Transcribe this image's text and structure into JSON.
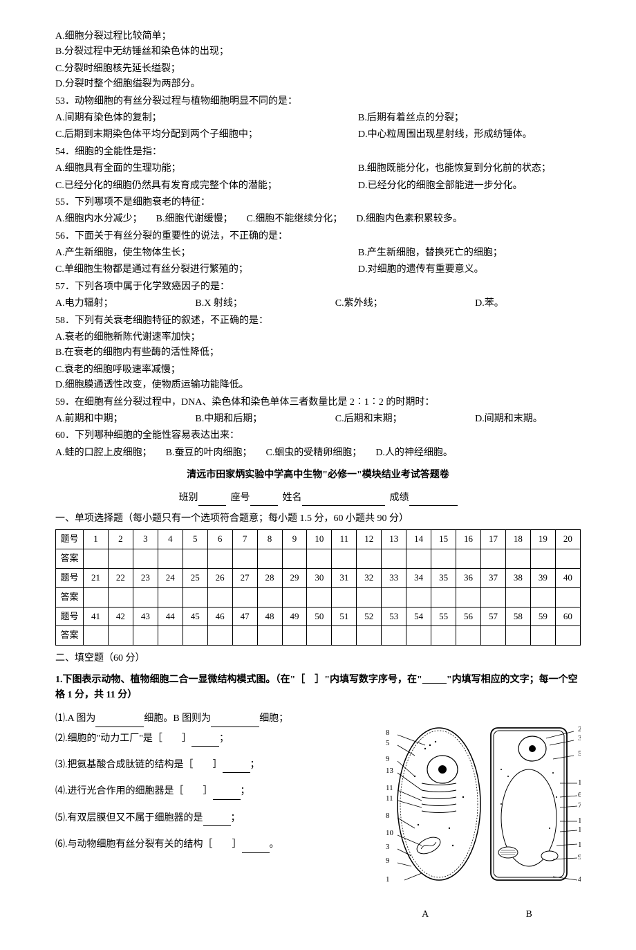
{
  "q52_options": {
    "A": "A.细胞分裂过程比较简单；",
    "B": "B.分裂过程中无纺锤丝和染色体的出现；",
    "C": "C.分裂时细胞核先延长缢裂；",
    "D": "D.分裂时整个细胞缢裂为两部分。"
  },
  "q53": {
    "stem": "53．动物细胞的有丝分裂过程与植物细胞明显不同的是：",
    "A": "A.间期有染色体的复制；",
    "B": "B.后期有着丝点的分裂；",
    "C": "C.后期到末期染色体平均分配到两个子细胞中；",
    "D": "D.中心粒周围出现星射线，形成纺锤体。"
  },
  "q54": {
    "stem": "54．细胞的全能性是指：",
    "A": "A.细胞具有全面的生理功能；",
    "B": "B.细胞既能分化，也能恢复到分化前的状态；",
    "C": "C.已经分化的细胞仍然具有发育成完整个体的潜能；",
    "D": "D.已经分化的细胞全部能进一步分化。"
  },
  "q55": {
    "stem": "55．下列哪项不是细胞衰老的特征：",
    "A": "A.细胞内水分减少；",
    "B": "B.细胞代谢缓慢；",
    "C": "C.细胞不能继续分化；",
    "D": "D.细胞内色素积累较多。"
  },
  "q56": {
    "stem": "56．下面关于有丝分裂的重要性的说法，不正确的是：",
    "A": "A.产生新细胞，使生物体生长；",
    "B": "B.产生新细胞，替换死亡的细胞；",
    "C": "C.单细胞生物都是通过有丝分裂进行繁殖的；",
    "D": "D.对细胞的遗传有重要意义。"
  },
  "q57": {
    "stem": "57．下列各项中属于化学致癌因子的是：",
    "A": "A.电力辐射；",
    "B": "B.X 射线；",
    "C": "C.紫外线；",
    "D": "D.苯。"
  },
  "q58": {
    "stem": "58．下列有关衰老细胞特征的叙述，不正确的是：",
    "A": "A.衰老的细胞新陈代谢速率加快；",
    "B": "B.在衰老的细胞内有些酶的活性降低；",
    "C": "C.衰老的细胞呼吸速率减慢；",
    "D": "D.细胞膜通透性改变，使物质运输功能降低。"
  },
  "q59": {
    "stem": "59．在细胞有丝分裂过程中，DNA、染色体和染色单体三者数量比是 2∶1∶2 的时期时：",
    "A": "A.前期和中期；",
    "B": "B.中期和后期；",
    "C": "C.后期和末期；",
    "D": "D.间期和末期。"
  },
  "q60": {
    "stem": "60．下列哪种细胞的全能性容易表达出来：",
    "A": "A.蛙的口腔上皮细胞；",
    "B": "B.蚕豆的叶肉细胞；",
    "C": "C.蛔虫的受精卵细胞；",
    "D": "D.人的神经细胞。"
  },
  "answer_sheet_title": "清远市田家炳实验中学高中生物\"必修一\"模块结业考试答题卷",
  "form_labels": {
    "class": "班别",
    "seat": "座号",
    "name": "姓名",
    "score": "成绩"
  },
  "section1_title": "一、单项选择题（每小题只有一个选项符合题意；每小题 1.5 分，60 小题共 90 分）",
  "grid": {
    "row_label_q": "题号",
    "row_label_a": "答案",
    "rows": [
      [
        1,
        2,
        3,
        4,
        5,
        6,
        7,
        8,
        9,
        10,
        11,
        12,
        13,
        14,
        15,
        16,
        17,
        18,
        19,
        20
      ],
      [
        21,
        22,
        23,
        24,
        25,
        26,
        27,
        28,
        29,
        30,
        31,
        32,
        33,
        34,
        35,
        36,
        37,
        38,
        39,
        40
      ],
      [
        41,
        42,
        43,
        44,
        45,
        46,
        47,
        48,
        49,
        50,
        51,
        52,
        53,
        54,
        55,
        56,
        57,
        58,
        59,
        60
      ]
    ]
  },
  "section2_title": "二、填空题（60 分）",
  "fill_q1": {
    "stem": "1.下图表示动物、植物细胞二合一显微结构模式图。（在\"［　］\"内填写数字序号，在\"_____\"内填写相应的文字；每一个空格 1 分，共 11 分）",
    "sub1_pre": "⑴.A 图为",
    "sub1_mid": "细胞。B 图则为",
    "sub1_post": "细胞；",
    "sub2": "⑵.细胞的\"动力工厂\"是［　　］",
    "sub2_post": "；",
    "sub3": "⑶.把氨基酸合成肽链的结构是［　　］",
    "sub3_post": "；",
    "sub4": "⑷.进行光合作用的细胞器是［　　］",
    "sub4_post": "；",
    "sub5": "⑸.有双层膜但又不属于细胞器的是",
    "sub5_post": "；",
    "sub6": "⑹.与动物细胞有丝分裂有关的结构［　　］",
    "sub6_post": "。"
  },
  "figure_labels": {
    "A": "A",
    "B": "B"
  },
  "diagram_numbers_left": [
    "8",
    "5",
    "9",
    "13",
    "11",
    "11",
    "8",
    "10",
    "3",
    "9",
    "1"
  ],
  "diagram_numbers_right": [
    "2",
    "3",
    "5",
    "11",
    "6",
    "7",
    "14",
    "12",
    "10",
    "9",
    "4"
  ]
}
